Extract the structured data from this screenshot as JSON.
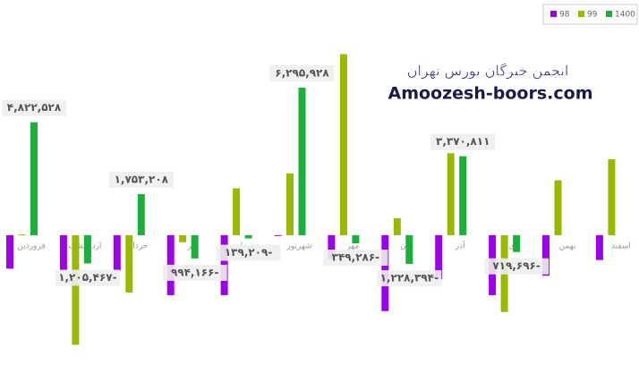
{
  "chart_data": {
    "type": "bar",
    "categories": [
      "فروردین",
      "اردیبهشت",
      "خرداد",
      "تیر",
      "مرداد",
      "شهریور",
      "مهر",
      "آبان",
      "آذر",
      "دی",
      "بهمن",
      "اسفند"
    ],
    "series": [
      {
        "name": "98",
        "color": "#9b00e8",
        "values": [
          -1430000,
          -1510000,
          -1510000,
          -2560000,
          -2560000,
          0,
          -1020000,
          -3240000,
          -1890000,
          -2560000,
          -1730000,
          -1060000
        ]
      },
      {
        "name": "99",
        "color": "#99b800",
        "values": [
          30000,
          -4680000,
          -2450000,
          -300000,
          2000000,
          2640000,
          7730000,
          720000,
          3500000,
          -3280000,
          2340000,
          3240000
        ]
      },
      {
        "name": "1400",
        "color": "#1fae3a",
        "values": [
          4822528,
          -1205467,
          1753208,
          -994166,
          -139209,
          6295928,
          -349286,
          -1228394,
          3370811,
          -719696,
          null,
          null
        ],
        "value_labels": [
          "۴,۸۲۲,۵۲۸",
          "۱,۲۰۵,۴۶۷-",
          "۱,۷۵۳,۲۰۸",
          "۹۹۴,۱۶۶-",
          "۱۳۹,۲۰۹-",
          "۶,۲۹۵,۹۲۸",
          "۳۴۹,۲۸۶-",
          "۱,۲۲۸,۳۹۴-",
          "۳,۳۷۰,۸۱۱",
          "۷۱۹,۶۹۶-",
          null,
          null
        ]
      }
    ],
    "ylim": [
      -6000000,
      9200000
    ],
    "legend": "top-right",
    "annotations": [
      "انجمن خبرگان بورس تهران",
      "Amoozesh-boors.com"
    ]
  }
}
